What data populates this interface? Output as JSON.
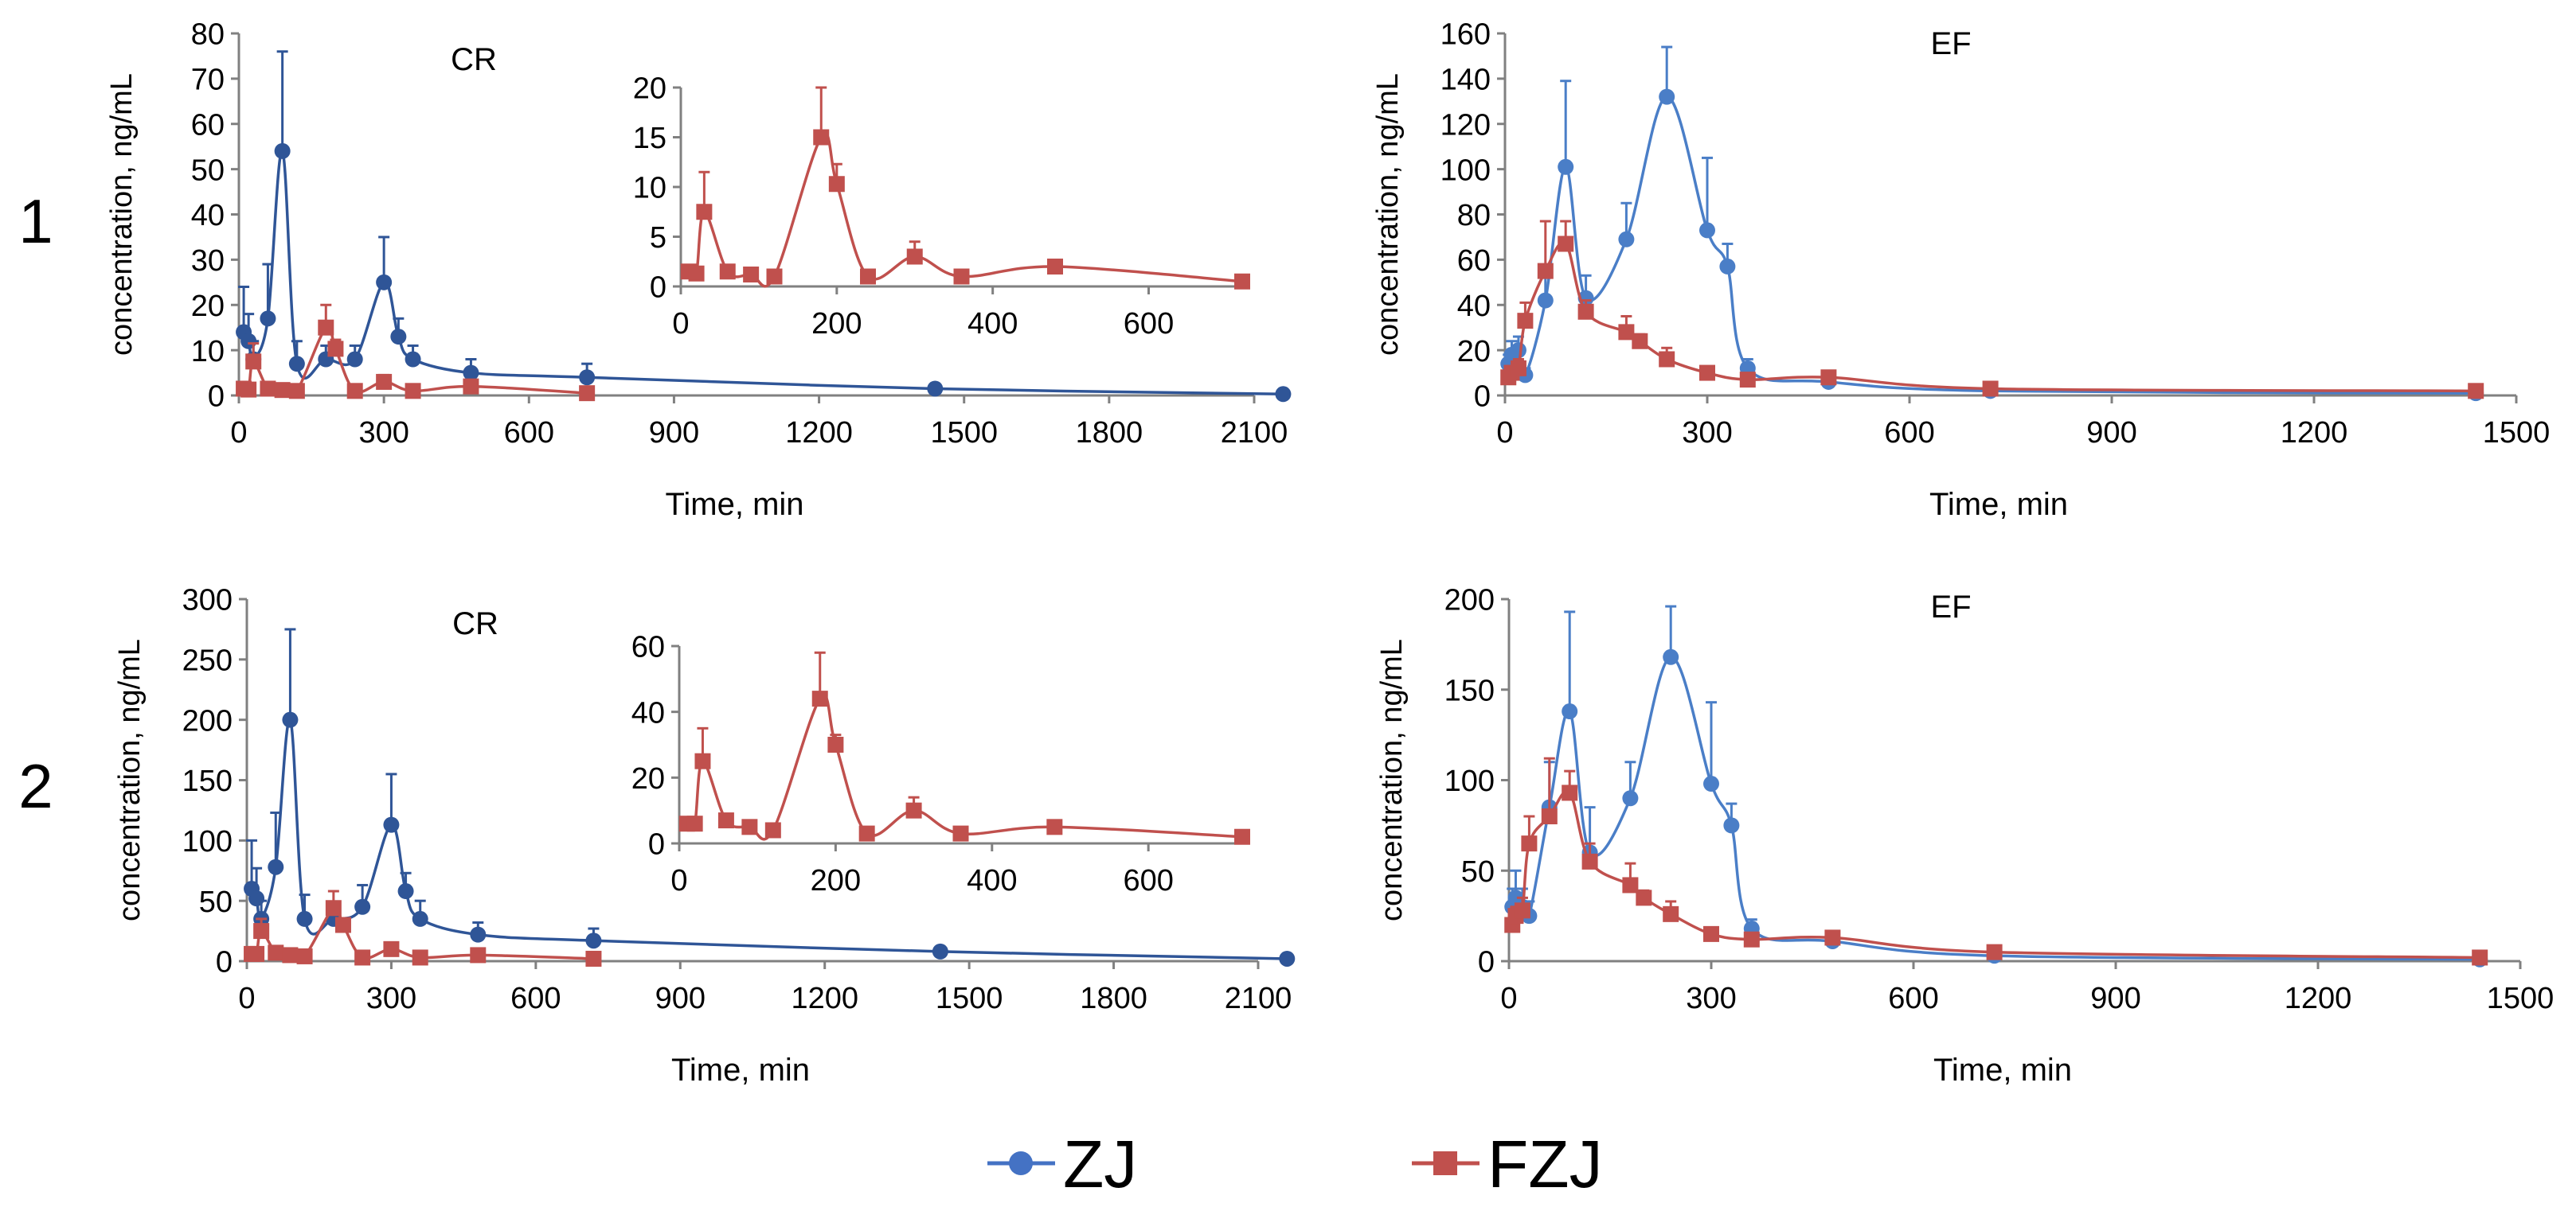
{
  "row_labels": [
    "1",
    "2"
  ],
  "legend": [
    {
      "name": "ZJ",
      "color": "#4472C4",
      "marker": "circle"
    },
    {
      "name": "FZJ",
      "color": "#C0504D",
      "marker": "square"
    }
  ],
  "colors": {
    "zj_cr": "#2F5597",
    "zj_ef": "#4A7EC7",
    "fzj": "#C0504D",
    "axis": "#808080"
  },
  "chart_data": [
    {
      "type": "line",
      "title": "CR",
      "xlabel": "Time, min",
      "ylabel": "concentration, ng/mL",
      "xlim": [
        0,
        2100
      ],
      "ylim": [
        0,
        80
      ],
      "xticks": [
        0,
        300,
        600,
        900,
        1200,
        1500,
        1800,
        2100
      ],
      "yticks": [
        0,
        10,
        20,
        30,
        40,
        50,
        60,
        70,
        80
      ],
      "series": [
        {
          "name": "ZJ",
          "x": [
            10,
            20,
            30,
            60,
            90,
            120,
            180,
            240,
            300,
            330,
            360,
            480,
            720,
            1440,
            2160
          ],
          "y": [
            14,
            12,
            8,
            17,
            54,
            7,
            8,
            8,
            25,
            13,
            8,
            5,
            4,
            1.5,
            0.3
          ],
          "err": [
            10,
            6,
            4,
            12,
            22,
            5,
            3,
            3,
            10,
            4,
            3,
            3,
            3,
            1,
            0
          ]
        },
        {
          "name": "FZJ",
          "x": [
            10,
            20,
            30,
            60,
            90,
            120,
            180,
            200,
            240,
            300,
            360,
            480,
            720
          ],
          "y": [
            1.5,
            1.3,
            7.5,
            1.5,
            1.2,
            1,
            15,
            10.3,
            1,
            3,
            1,
            2,
            0.5
          ],
          "err": [
            0,
            0,
            4,
            0,
            0,
            0,
            5,
            2,
            0,
            1.5,
            0,
            0.3,
            0
          ]
        }
      ],
      "inset": {
        "xlim": [
          0,
          720
        ],
        "ylim": [
          0,
          20
        ],
        "xticks": [
          0,
          200,
          400,
          600
        ],
        "yticks": [
          0,
          5,
          10,
          15,
          20
        ],
        "series_name": "FZJ"
      }
    },
    {
      "type": "line",
      "title": "EF",
      "xlabel": "Time, min",
      "ylabel": "concentration, ng/mL",
      "xlim": [
        0,
        1500
      ],
      "ylim": [
        0,
        160
      ],
      "xticks": [
        0,
        300,
        600,
        900,
        1200,
        1500
      ],
      "yticks": [
        0,
        20,
        40,
        60,
        80,
        100,
        120,
        140,
        160
      ],
      "series": [
        {
          "name": "ZJ",
          "x": [
            5,
            10,
            20,
            30,
            60,
            90,
            120,
            180,
            240,
            300,
            330,
            360,
            480,
            720,
            1440
          ],
          "y": [
            14,
            18,
            20,
            9,
            42,
            101,
            43,
            69,
            132,
            73,
            57,
            12,
            6,
            2,
            1
          ],
          "err": [
            4,
            6,
            6,
            3,
            10,
            38,
            10,
            16,
            22,
            32,
            10,
            4,
            2,
            1,
            0
          ]
        },
        {
          "name": "FZJ",
          "x": [
            5,
            10,
            20,
            30,
            60,
            90,
            120,
            180,
            200,
            240,
            300,
            360,
            480,
            720,
            1440
          ],
          "y": [
            8,
            10,
            12,
            33,
            55,
            67,
            37,
            28,
            24,
            16,
            10,
            7,
            8,
            3,
            2
          ],
          "err": [
            2,
            3,
            4,
            8,
            22,
            10,
            5,
            7,
            3,
            5,
            2,
            1,
            1,
            1,
            0
          ]
        }
      ]
    },
    {
      "type": "line",
      "title": "CR",
      "xlabel": "Time, min",
      "ylabel": "concentration, ng/mL",
      "xlim": [
        0,
        2100
      ],
      "ylim": [
        0,
        300
      ],
      "xticks": [
        0,
        300,
        600,
        900,
        1200,
        1500,
        1800,
        2100
      ],
      "yticks": [
        0,
        50,
        100,
        150,
        200,
        250,
        300
      ],
      "series": [
        {
          "name": "ZJ",
          "x": [
            10,
            20,
            30,
            60,
            90,
            120,
            180,
            240,
            300,
            330,
            360,
            480,
            720,
            1440,
            2160
          ],
          "y": [
            60,
            52,
            35,
            78,
            200,
            35,
            35,
            45,
            113,
            58,
            35,
            22,
            17,
            8,
            2
          ],
          "err": [
            40,
            25,
            15,
            45,
            75,
            20,
            10,
            18,
            42,
            15,
            15,
            10,
            10,
            3,
            0
          ]
        },
        {
          "name": "FZJ",
          "x": [
            10,
            20,
            30,
            60,
            90,
            120,
            180,
            200,
            240,
            300,
            360,
            480,
            720
          ],
          "y": [
            6,
            6,
            25,
            7,
            5,
            4,
            44,
            30,
            3,
            10,
            3,
            5,
            2
          ],
          "err": [
            0,
            0,
            10,
            0,
            0,
            0,
            14,
            3,
            0,
            4,
            0,
            1,
            0
          ]
        }
      ],
      "inset": {
        "xlim": [
          0,
          720
        ],
        "ylim": [
          0,
          60
        ],
        "xticks": [
          0,
          200,
          400,
          600
        ],
        "yticks": [
          0,
          20,
          40,
          60
        ],
        "series_name": "FZJ"
      }
    },
    {
      "type": "line",
      "title": "EF",
      "xlabel": "Time, min",
      "ylabel": "concentration, ng/mL",
      "xlim": [
        0,
        1500
      ],
      "ylim": [
        0,
        200
      ],
      "xticks": [
        0,
        300,
        600,
        900,
        1200,
        1500
      ],
      "yticks": [
        0,
        50,
        100,
        150,
        200
      ],
      "series": [
        {
          "name": "ZJ",
          "x": [
            5,
            10,
            20,
            30,
            60,
            90,
            120,
            180,
            240,
            300,
            330,
            360,
            480,
            720,
            1440
          ],
          "y": [
            30,
            35,
            30,
            25,
            85,
            138,
            60,
            90,
            168,
            98,
            75,
            18,
            11,
            3,
            1
          ],
          "err": [
            10,
            15,
            10,
            8,
            25,
            55,
            25,
            20,
            28,
            45,
            12,
            5,
            2,
            1,
            0
          ]
        },
        {
          "name": "FZJ",
          "x": [
            5,
            10,
            20,
            30,
            60,
            90,
            120,
            180,
            200,
            240,
            300,
            360,
            480,
            720,
            1440
          ],
          "y": [
            20,
            25,
            28,
            65,
            80,
            93,
            55,
            42,
            35,
            26,
            15,
            12,
            13,
            5,
            2
          ],
          "err": [
            3,
            5,
            7,
            15,
            32,
            12,
            10,
            12,
            4,
            7,
            2,
            2,
            2,
            1,
            0
          ]
        }
      ]
    }
  ]
}
